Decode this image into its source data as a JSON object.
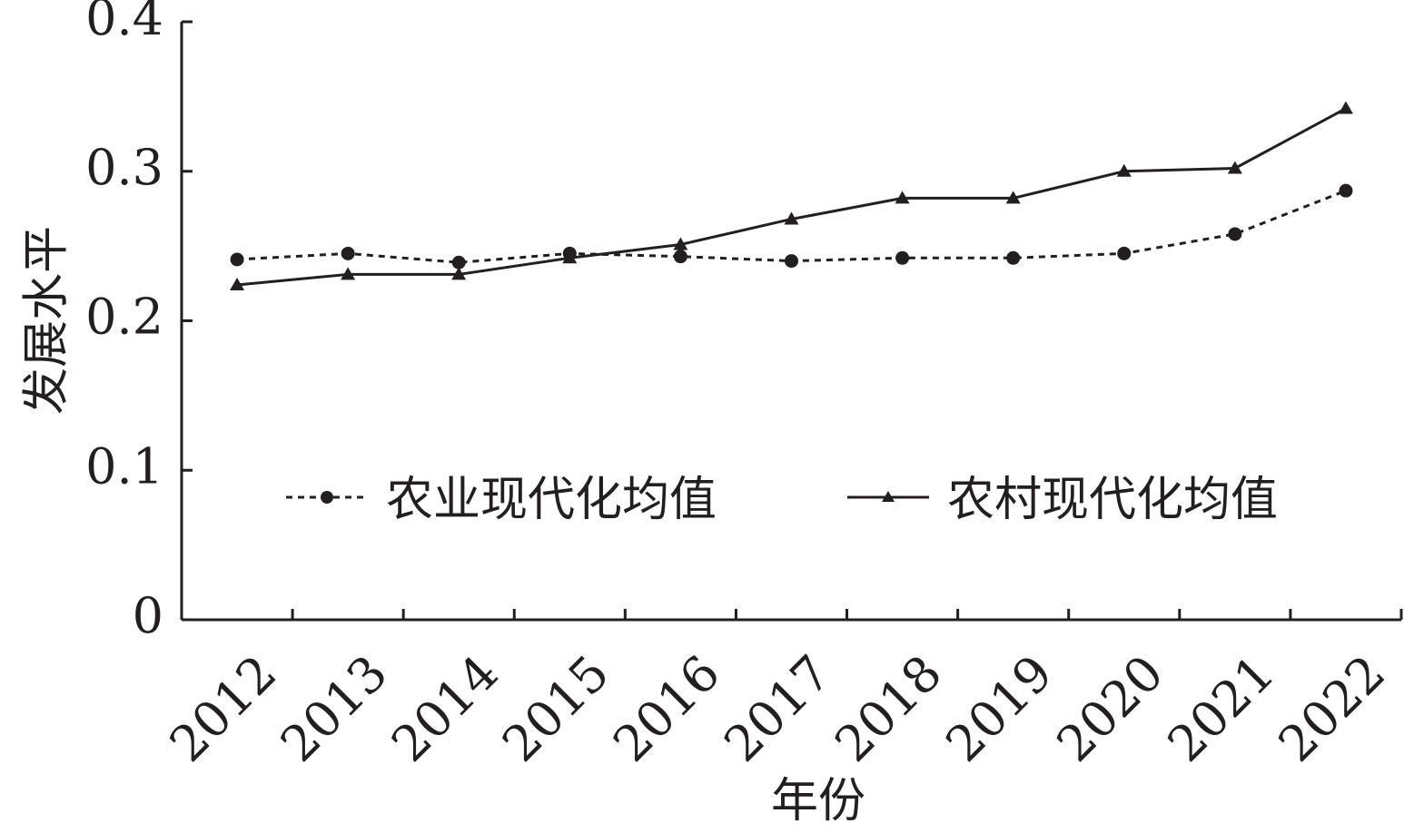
{
  "chart_data": {
    "type": "line",
    "categories": [
      "2012",
      "2013",
      "2014",
      "2015",
      "2016",
      "2017",
      "2018",
      "2019",
      "2020",
      "2021",
      "2022"
    ],
    "series": [
      {
        "name": "农业现代化均值",
        "values": [
          0.241,
          0.245,
          0.239,
          0.245,
          0.243,
          0.24,
          0.242,
          0.242,
          0.245,
          0.258,
          0.287
        ],
        "line_style": "dotted",
        "marker": "circle",
        "color": "#231f20"
      },
      {
        "name": "农村现代化均值",
        "values": [
          0.224,
          0.231,
          0.231,
          0.242,
          0.251,
          0.268,
          0.282,
          0.282,
          0.3,
          0.302,
          0.342
        ],
        "line_style": "solid",
        "marker": "triangle",
        "color": "#231f20"
      }
    ],
    "yticks": [
      "0",
      "0.1",
      "0.2",
      "0.3",
      "0.4"
    ],
    "ylim": [
      0,
      0.4
    ],
    "xlabel": "年份",
    "ylabel": "发展水平",
    "title": "",
    "grid": false,
    "legend_position": "center-right"
  }
}
